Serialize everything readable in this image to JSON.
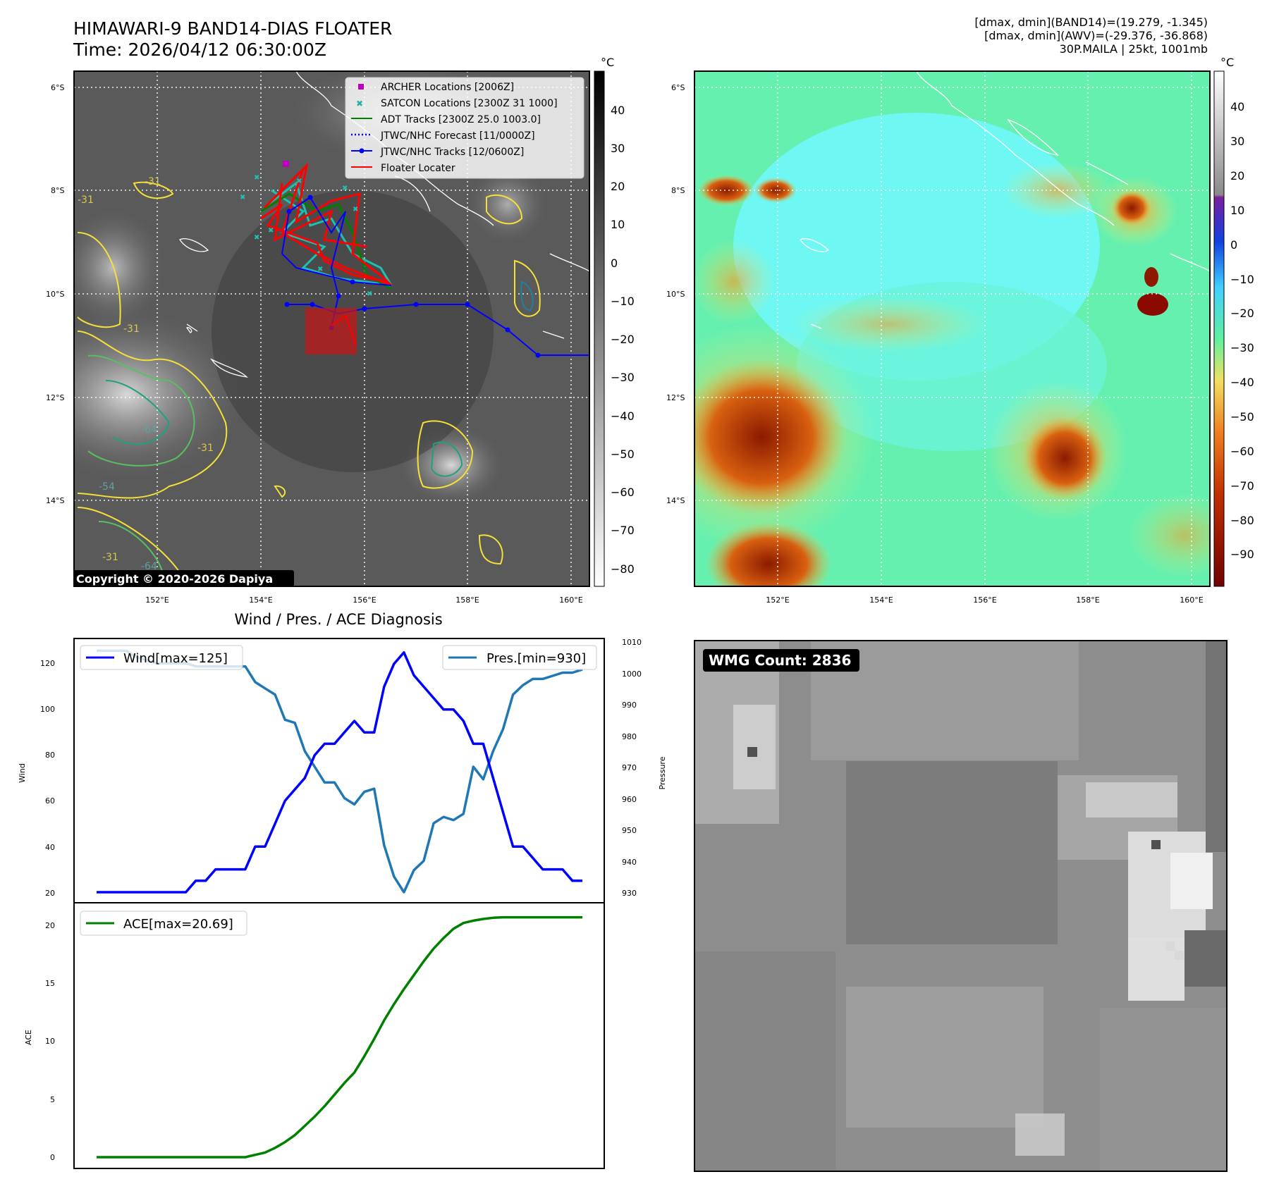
{
  "header": {
    "title_line1": "HIMAWARI-9 BAND14-DIAS FLOATER",
    "title_line2": "Time: 2026/04/12 06:30:00Z",
    "info_line1": "[dmax, dmin](BAND14)=(19.279, -1.345)",
    "info_line2": "[dmax, dmin](AWV)=(-29.376, -36.868)",
    "info_line3": "30P.MAILA | 25kt, 1001mb"
  },
  "ir_panel": {
    "lat_labels": [
      "6°S",
      "8°S",
      "10°S",
      "12°S",
      "14°S"
    ],
    "lon_labels": [
      "152°E",
      "154°E",
      "156°E",
      "158°E",
      "160°E"
    ],
    "colorbar_unit": "°C",
    "colorbar_ticks": [
      "40",
      "30",
      "20",
      "10",
      "0",
      "−10",
      "−20",
      "−30",
      "−40",
      "−50",
      "−60",
      "−70",
      "−80"
    ],
    "copyright": "Copyright © 2020-2026 Dapiya",
    "legend": [
      {
        "label": "ARCHER Locations [2006Z]",
        "color": "#bf00bf",
        "icon": "square-marker"
      },
      {
        "label": "SATCON Locations [2300Z 31 1000]",
        "color": "#20b2aa",
        "icon": "x-marker"
      },
      {
        "label": "ADT Tracks [2300Z 25.0 1003.0]",
        "color": "#008000",
        "icon": "line"
      },
      {
        "label": "JTWC/NHC Forecast [11/0000Z]",
        "color": "#0000ff",
        "icon": "dotted-line"
      },
      {
        "label": "JTWC/NHC Tracks [12/0600Z]",
        "color": "#0000ff",
        "icon": "line-dot"
      },
      {
        "label": "Floater Locater",
        "color": "#ff0000",
        "icon": "line"
      }
    ],
    "contour_labels": [
      "-31",
      "-31",
      "-31",
      "-64",
      "-54",
      "-31",
      "-31",
      "-64"
    ]
  },
  "wv_panel": {
    "lat_labels": [
      "6°S",
      "8°S",
      "10°S",
      "12°S",
      "14°S"
    ],
    "lon_labels": [
      "152°E",
      "154°E",
      "156°E",
      "158°E",
      "160°E"
    ],
    "colorbar_unit": "°C",
    "colorbar_ticks": [
      "40",
      "30",
      "20",
      "10",
      "0",
      "−10",
      "−20",
      "−30",
      "−40",
      "−50",
      "−60",
      "−70",
      "−80",
      "−90"
    ]
  },
  "diag_panel": {
    "title": "Wind / Pres. / ACE Diagnosis",
    "wind_ylabel": "Wind",
    "pres_ylabel": "Pressure",
    "ace_ylabel": "ACE",
    "wind_legend": "Wind[max=125]",
    "pres_legend": "Pres.[min=930]",
    "ace_legend": "ACE[max=20.69]",
    "wind_ticks": [
      "120",
      "100",
      "80",
      "60",
      "40",
      "20"
    ],
    "pres_ticks": [
      "1010",
      "1000",
      "990",
      "980",
      "970",
      "960",
      "950",
      "940",
      "930"
    ],
    "ace_ticks": [
      "20",
      "15",
      "10",
      "5",
      "0"
    ]
  },
  "wmg_panel": {
    "badge": "WMG Count: 2836"
  },
  "chart_data": [
    {
      "type": "line",
      "name": "wind-pressure",
      "x": [
        0,
        1,
        2,
        3,
        4,
        5,
        6,
        7,
        8,
        9,
        10,
        11,
        12,
        13,
        14,
        15,
        16,
        17,
        18,
        19,
        20,
        21,
        22,
        23,
        24,
        25,
        26,
        27,
        28,
        29,
        30,
        31,
        32,
        33,
        34,
        35,
        36,
        37,
        38,
        39,
        40,
        41,
        42,
        43,
        44,
        45,
        46,
        47,
        48,
        49
      ],
      "series": [
        {
          "name": "Wind[max=125]",
          "axis": "left",
          "color": "#0000ff",
          "values": [
            20,
            20,
            20,
            20,
            20,
            20,
            20,
            20,
            20,
            20,
            25,
            25,
            30,
            30,
            30,
            30,
            40,
            40,
            50,
            60,
            65,
            70,
            80,
            85,
            85,
            90,
            95,
            90,
            90,
            110,
            120,
            125,
            115,
            110,
            105,
            100,
            100,
            95,
            85,
            85,
            70,
            55,
            40,
            40,
            35,
            30,
            30,
            30,
            25,
            25
          ]
        },
        {
          "name": "Pres.[min=930]",
          "axis": "right",
          "color": "#1f77b4",
          "values": [
            1007,
            1007,
            1007,
            1007,
            1005,
            1004,
            1003,
            1003,
            1003,
            1003,
            1002,
            1002,
            1002,
            1002,
            1002,
            1002,
            997,
            995,
            993,
            985,
            984,
            975,
            970,
            965,
            965,
            960,
            958,
            962,
            963,
            945,
            935,
            930,
            937,
            940,
            952,
            954,
            953,
            955,
            970,
            966,
            975,
            982,
            993,
            996,
            998,
            998,
            999,
            1000,
            1000,
            1001
          ]
        }
      ],
      "ylim_left": [
        17,
        130
      ],
      "ylim_right": [
        923,
        1011
      ]
    },
    {
      "type": "line",
      "name": "ace",
      "x": [
        0,
        1,
        2,
        3,
        4,
        5,
        6,
        7,
        8,
        9,
        10,
        11,
        12,
        13,
        14,
        15,
        16,
        17,
        18,
        19,
        20,
        21,
        22,
        23,
        24,
        25,
        26,
        27,
        28,
        29,
        30,
        31,
        32,
        33,
        34,
        35,
        36,
        37,
        38,
        39,
        40,
        41,
        42,
        43,
        44,
        45,
        46,
        47,
        48,
        49
      ],
      "series": [
        {
          "name": "ACE[max=20.69]",
          "color": "#008000",
          "values": [
            0,
            0,
            0,
            0,
            0,
            0,
            0,
            0,
            0,
            0,
            0,
            0,
            0,
            0,
            0,
            0,
            0.2,
            0.4,
            0.8,
            1.3,
            1.9,
            2.7,
            3.5,
            4.4,
            5.4,
            6.4,
            7.3,
            8.7,
            10.2,
            11.8,
            13.2,
            14.5,
            15.7,
            16.9,
            18.0,
            18.9,
            19.7,
            20.2,
            20.4,
            20.55,
            20.65,
            20.69,
            20.69,
            20.69,
            20.69,
            20.69,
            20.69,
            20.69,
            20.69,
            20.69
          ]
        }
      ],
      "ylim": [
        -1,
        21.8
      ]
    }
  ]
}
